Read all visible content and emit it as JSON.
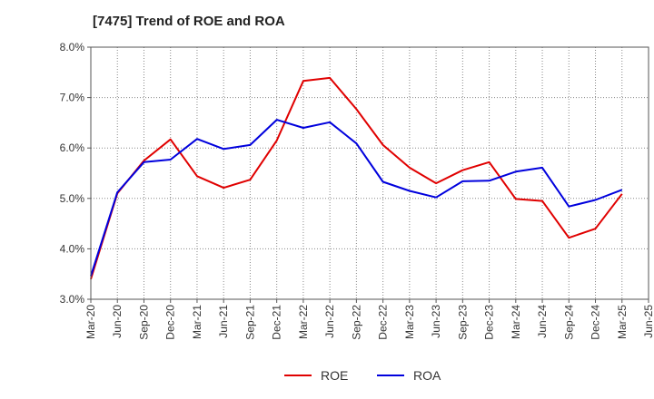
{
  "chart_data": {
    "type": "line",
    "title": "[7475]  Trend of ROE and ROA",
    "xlabel": "",
    "ylabel": "",
    "ylim": [
      3.0,
      8.0
    ],
    "y_ticks": [
      "3.0%",
      "4.0%",
      "5.0%",
      "6.0%",
      "7.0%",
      "8.0%"
    ],
    "y_tick_values": [
      3.0,
      4.0,
      5.0,
      6.0,
      7.0,
      8.0
    ],
    "x_ticks": [
      "Mar-20",
      "Jun-20",
      "Sep-20",
      "Dec-20",
      "Mar-21",
      "Jun-21",
      "Sep-21",
      "Dec-21",
      "Mar-22",
      "Jun-22",
      "Sep-22",
      "Dec-22",
      "Mar-23",
      "Jun-23",
      "Sep-23",
      "Dec-23",
      "Mar-24",
      "Jun-24",
      "Sep-24",
      "Dec-24",
      "Mar-25",
      "Jun-25"
    ],
    "grid": true,
    "legend_position": "bottom",
    "series": [
      {
        "name": "ROE",
        "color": "#e00000",
        "x": [
          "Mar-20",
          "Jun-20",
          "Sep-20",
          "Dec-20",
          "Mar-21",
          "Jun-21",
          "Sep-21",
          "Dec-21",
          "Mar-22",
          "Jun-22",
          "Sep-22",
          "Dec-22",
          "Mar-23",
          "Jun-23",
          "Sep-23",
          "Dec-23",
          "Mar-24",
          "Jun-24",
          "Sep-24",
          "Dec-24",
          "Mar-25"
        ],
        "values": [
          3.4,
          5.1,
          5.75,
          6.17,
          5.44,
          5.21,
          5.37,
          6.15,
          7.33,
          7.39,
          6.77,
          6.06,
          5.61,
          5.3,
          5.56,
          5.72,
          4.99,
          4.95,
          4.22,
          4.4,
          5.09
        ]
      },
      {
        "name": "ROA",
        "color": "#0000dd",
        "x": [
          "Mar-20",
          "Jun-20",
          "Sep-20",
          "Dec-20",
          "Mar-21",
          "Jun-21",
          "Sep-21",
          "Dec-21",
          "Mar-22",
          "Jun-22",
          "Sep-22",
          "Dec-22",
          "Mar-23",
          "Jun-23",
          "Sep-23",
          "Dec-23",
          "Mar-24",
          "Jun-24",
          "Sep-24",
          "Dec-24",
          "Mar-25"
        ],
        "values": [
          3.46,
          5.12,
          5.72,
          5.77,
          6.18,
          5.98,
          6.06,
          6.56,
          6.4,
          6.51,
          6.09,
          5.33,
          5.15,
          5.02,
          5.34,
          5.35,
          5.53,
          5.61,
          4.84,
          4.97,
          5.17
        ]
      }
    ]
  }
}
